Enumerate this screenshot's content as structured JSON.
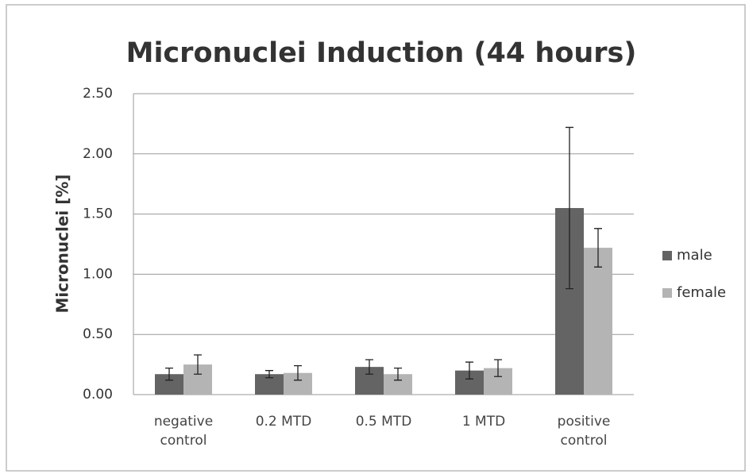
{
  "chart_data": {
    "type": "bar",
    "title": "Micronuclei Induction (44 hours)",
    "y_label": "Micronuclei [%]",
    "categories": [
      "negative control",
      "0.2 MTD",
      "0.5 MTD",
      "1 MTD",
      "positive control"
    ],
    "series": [
      {
        "name": "male",
        "color": "#646464",
        "values": [
          0.17,
          0.17,
          0.23,
          0.2,
          1.55
        ],
        "errors": [
          0.05,
          0.03,
          0.06,
          0.07,
          0.67
        ]
      },
      {
        "name": "female",
        "color": "#b4b4b4",
        "values": [
          0.25,
          0.18,
          0.17,
          0.22,
          1.22
        ],
        "errors": [
          0.08,
          0.06,
          0.05,
          0.07,
          0.16
        ]
      }
    ],
    "ylim": [
      0,
      2.5
    ],
    "yticks": [
      {
        "value": 0,
        "label": "0.00"
      },
      {
        "value": 0.5,
        "label": "0.50"
      },
      {
        "value": 1,
        "label": "1.00"
      },
      {
        "value": 1.5,
        "label": "1.50"
      },
      {
        "value": 2,
        "label": "2.00"
      },
      {
        "value": 2.5,
        "label": "2.50"
      }
    ],
    "grid": true,
    "legend": "right"
  }
}
